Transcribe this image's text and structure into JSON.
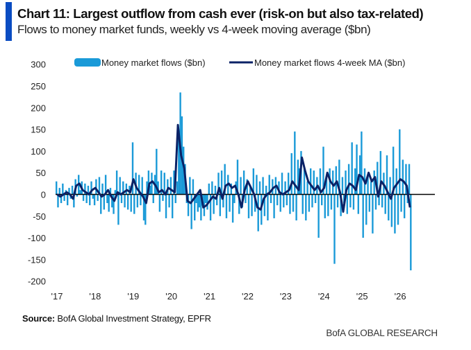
{
  "header": {
    "title": "Chart 11: Largest outflow from cash ever (risk-on but also tax-related)",
    "subtitle": "Flows to money market funds, weekly vs 4-week moving average ($bn)"
  },
  "footer": {
    "source_label": "Source:",
    "source_text": " BofA Global Investment Strategy, EPFR",
    "brand": "BofA GLOBAL RESEARCH"
  },
  "colors": {
    "accent_bar": "#0a4cc2",
    "flows": "#1a9ad8",
    "ma": "#0b2266",
    "zero_line": "#000000"
  },
  "chart_data": {
    "type": "bar+line",
    "title": "Chart 11: Largest outflow from cash ever (risk-on but also tax-related)",
    "ylim": [
      -200,
      300
    ],
    "yticks": [
      300,
      250,
      200,
      150,
      100,
      50,
      0,
      -50,
      -100,
      -150,
      -200
    ],
    "xticks": [
      "'17",
      "'18",
      "'19",
      "'20",
      "'21",
      "'22",
      "'23",
      "'24",
      "'25",
      "'26"
    ],
    "legend": {
      "placement": "top",
      "entries": [
        "Money market flows ($bn)",
        "Money market flows 4-week MA ($bn)"
      ]
    },
    "grid": false,
    "series": [
      {
        "name": "Money market flows ($bn)",
        "type": "bar",
        "start": "2017-01",
        "frequency": "biweekly",
        "values": {
          "2017": [
            30,
            -30,
            15,
            -20,
            25,
            -15,
            10,
            -25,
            15,
            -10,
            20,
            -30,
            35,
            -5,
            45,
            10,
            30,
            -15,
            25,
            -20,
            20,
            -25,
            30,
            -10
          ],
          "2018": [
            -25,
            35,
            -15,
            40,
            -45,
            25,
            -35,
            45,
            -20,
            -40,
            15,
            -30,
            -45,
            10,
            55,
            -70,
            40,
            -20,
            30,
            -30,
            25,
            -35,
            20,
            -40
          ],
          "2019": [
            120,
            -45,
            50,
            -30,
            45,
            -25,
            40,
            -60,
            -70,
            30,
            55,
            20,
            50,
            -20,
            45,
            105,
            30,
            -40,
            55,
            -15,
            50,
            -55,
            35,
            -30
          ],
          "2020": [
            40,
            -55,
            55,
            -20,
            30,
            140,
            235,
            180,
            110,
            70,
            -20,
            -50,
            40,
            -80,
            35,
            -60,
            -20,
            -40,
            -30,
            -60,
            -25,
            -50,
            -20,
            -35
          ],
          "2021": [
            25,
            -60,
            30,
            -45,
            20,
            -25,
            50,
            -50,
            55,
            -30,
            70,
            -55,
            45,
            -40,
            25,
            -65,
            -20,
            30,
            80,
            -45,
            40,
            -30,
            55,
            -20
          ],
          "2022": [
            35,
            -55,
            20,
            -50,
            60,
            -40,
            45,
            -85,
            30,
            -70,
            40,
            -50,
            20,
            -60,
            45,
            -20,
            35,
            -55,
            40,
            -25,
            30,
            -40,
            50,
            -30
          ],
          "2023": [
            30,
            -25,
            50,
            -45,
            95,
            -40,
            145,
            -60,
            80,
            60,
            100,
            -45,
            60,
            -60,
            30,
            -40,
            60,
            -30,
            55,
            -20,
            40,
            -100,
            60,
            -25
          ],
          "2024": [
            110,
            -55,
            40,
            -50,
            60,
            -35,
            55,
            -160,
            65,
            -30,
            80,
            -50,
            40,
            -20,
            55,
            -45,
            70,
            -30,
            120,
            -35,
            60,
            115,
            -45,
            90
          ],
          "2025": [
            145,
            -100,
            60,
            -70,
            45,
            -40,
            30,
            -90,
            55,
            -35,
            75,
            -25,
            100,
            -30,
            50,
            -45,
            90,
            -60,
            40,
            -75,
            110,
            -90,
            60,
            -70
          ],
          "2026": [
            150,
            -40,
            80,
            -55,
            70,
            -20,
            70,
            -175
          ]
        }
      },
      {
        "name": "Money market flows 4-week MA ($bn)",
        "type": "line",
        "start": "2017-01",
        "frequency": "monthly",
        "values": {
          "2017": [
            0,
            -5,
            0,
            5,
            0,
            -10,
            20,
            25,
            10,
            5,
            0,
            10
          ],
          "2018": [
            15,
            5,
            -5,
            0,
            10,
            -5,
            -15,
            5,
            0,
            5,
            10,
            5
          ],
          "2019": [
            35,
            15,
            5,
            -5,
            -20,
            25,
            30,
            20,
            5,
            10,
            0,
            15
          ],
          "2020": [
            10,
            5,
            160,
            90,
            60,
            -15,
            -20,
            -10,
            0,
            10,
            -30,
            -25
          ],
          "2021": [
            -15,
            -5,
            -10,
            15,
            -10,
            20,
            25,
            15,
            20,
            0,
            -30,
            10
          ],
          "2022": [
            30,
            15,
            0,
            -30,
            -35,
            -10,
            0,
            5,
            15,
            20,
            5,
            0
          ],
          "2023": [
            5,
            10,
            30,
            20,
            10,
            85,
            55,
            30,
            20,
            10,
            20,
            5
          ],
          "2024": [
            15,
            50,
            30,
            20,
            30,
            5,
            -40,
            10,
            25,
            20,
            10,
            45
          ],
          "2025": [
            40,
            25,
            50,
            30,
            40,
            -5,
            30,
            20,
            5,
            -10,
            15,
            25
          ],
          "2026": [
            35,
            30,
            20,
            -30
          ]
        }
      }
    ]
  }
}
